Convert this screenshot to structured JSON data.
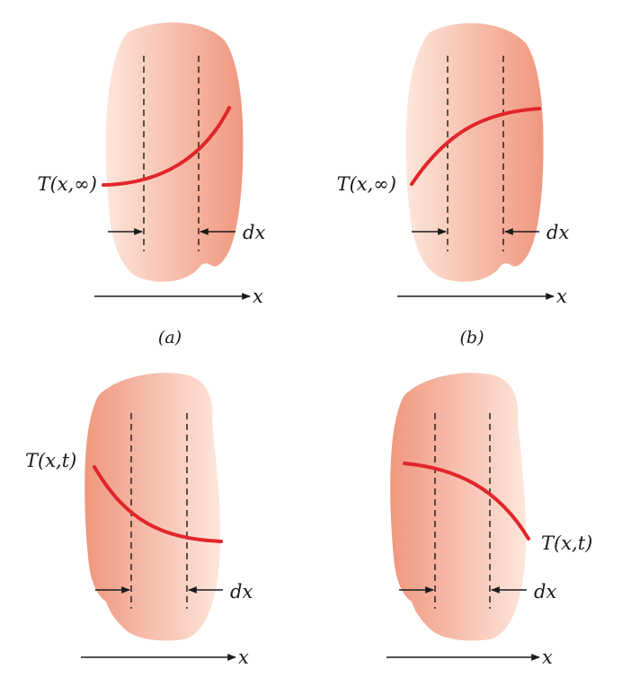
{
  "panels": [
    {
      "id": "a",
      "curve_label": "T(x,∞)",
      "dx_label": "dx",
      "axis_label": "x",
      "caption": "(a)"
    },
    {
      "id": "b",
      "curve_label": "T(x,∞)",
      "dx_label": "dx",
      "axis_label": "x",
      "caption": "(b)"
    },
    {
      "id": "c",
      "curve_label": "T(x,t)",
      "dx_label": "dx",
      "axis_label": "x",
      "caption": ""
    },
    {
      "id": "d",
      "curve_label": "T(x,t)",
      "dx_label": "dx",
      "axis_label": "x",
      "caption": ""
    }
  ],
  "colors": {
    "body_light": "#fde4da",
    "body_dark": "#f19c84",
    "curve": "#e0262b",
    "ink": "#1a1a1a"
  }
}
